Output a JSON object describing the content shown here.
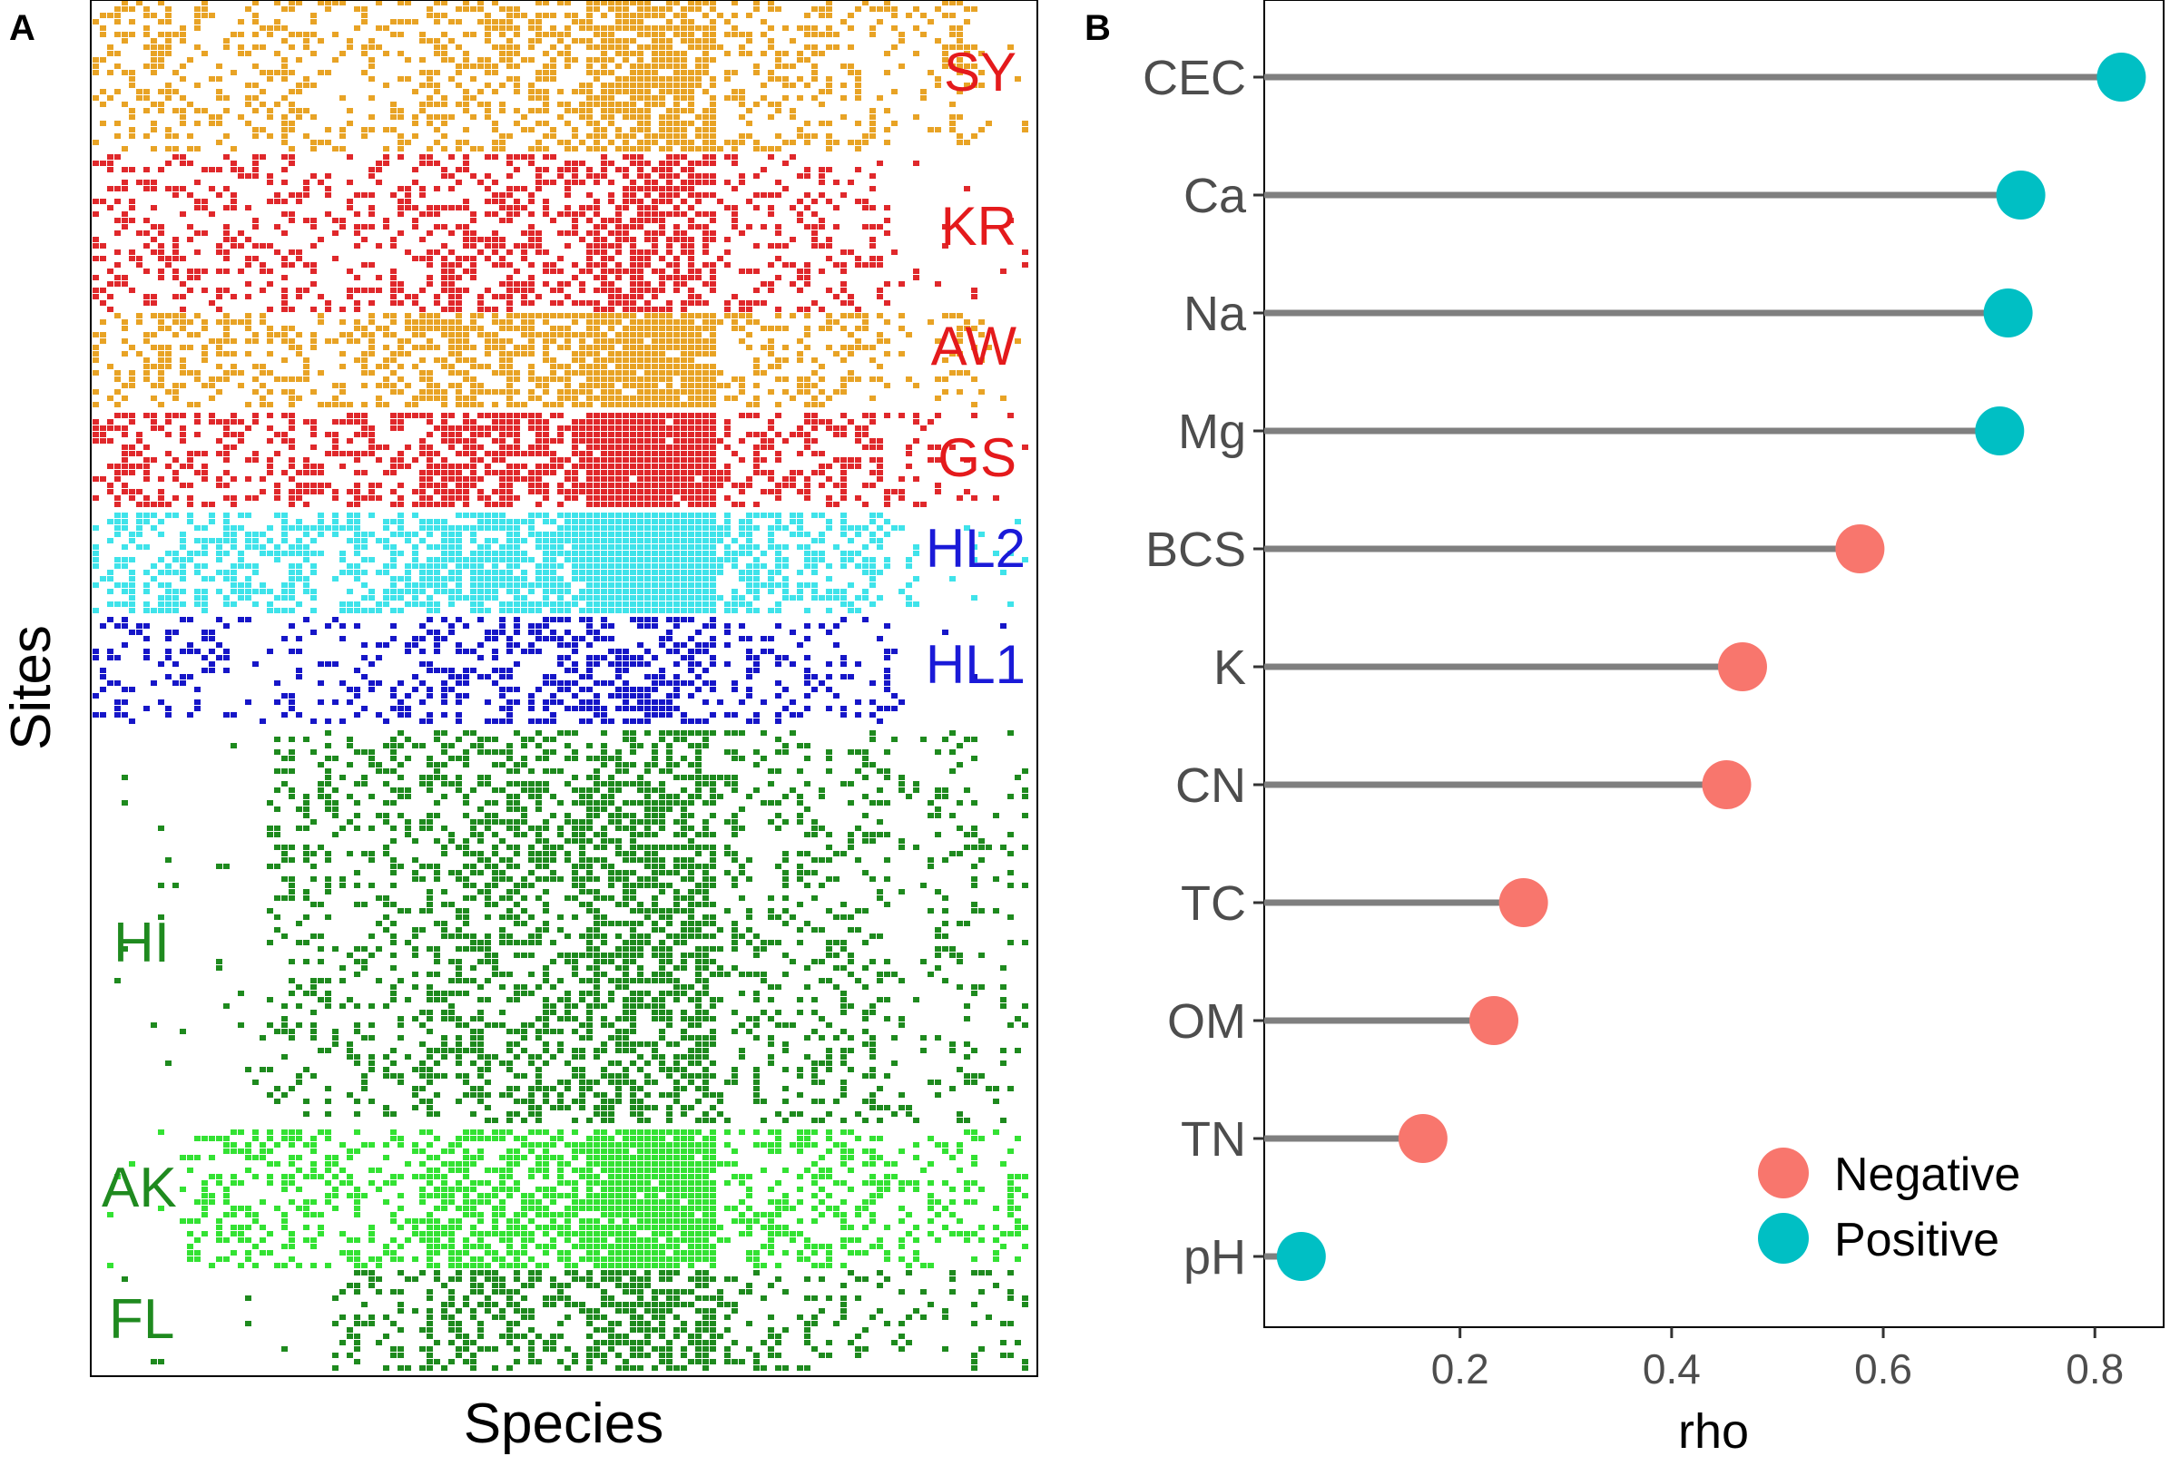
{
  "chart_data": [
    {
      "panel": "A",
      "type": "heatmap",
      "description_text": "species presence/absence matrix by site",
      "xlabel": "Species",
      "ylabel": "Sites",
      "groups": [
        {
          "label": "SY",
          "label_color": "#e41a1c",
          "fill_color": "#e8a325"
        },
        {
          "label": "KR",
          "label_color": "#e41a1c",
          "fill_color": "#e0282b"
        },
        {
          "label": "AW",
          "label_color": "#e41a1c",
          "fill_color": "#e8a325"
        },
        {
          "label": "GS",
          "label_color": "#e41a1c",
          "fill_color": "#e0282b"
        },
        {
          "label": "HL2",
          "label_color": "#1a1ad8",
          "fill_color": "#3fe3ea"
        },
        {
          "label": "HL1",
          "label_color": "#1a1ad8",
          "fill_color": "#1616c8"
        },
        {
          "label": "HI",
          "label_color": "#1f8a1f",
          "fill_color": "#1e8a1e"
        },
        {
          "label": "AK",
          "label_color": "#1f8a1f",
          "fill_color": "#33e233"
        },
        {
          "label": "FL",
          "label_color": "#1f8a1f",
          "fill_color": "#1e8a1e"
        }
      ]
    },
    {
      "panel": "B",
      "type": "lollipop",
      "xlabel": "rho",
      "ylabel": "",
      "xlim": [
        0.015,
        0.865
      ],
      "xticks": [
        "0.2",
        "0.4",
        "0.6",
        "0.8"
      ],
      "xtick_values": [
        0.2,
        0.4,
        0.6,
        0.8
      ],
      "categories": [
        "CEC",
        "Ca",
        "Na",
        "Mg",
        "BCS",
        "K",
        "CN",
        "TC",
        "OM",
        "TN",
        "pH"
      ],
      "values": [
        0.825,
        0.73,
        0.718,
        0.71,
        0.578,
        0.467,
        0.452,
        0.26,
        0.232,
        0.165,
        0.05
      ],
      "signs": [
        "Positive",
        "Positive",
        "Positive",
        "Positive",
        "Negative",
        "Negative",
        "Negative",
        "Negative",
        "Negative",
        "Negative",
        "Positive"
      ],
      "legend": {
        "position": "bottom-right",
        "entries": [
          {
            "label": "Negative",
            "color": "#f8766d"
          },
          {
            "label": "Positive",
            "color": "#00bfc4"
          }
        ]
      },
      "stem_color": "#7f7f7f"
    }
  ],
  "panel_labels": {
    "a": "A",
    "b": "B"
  }
}
